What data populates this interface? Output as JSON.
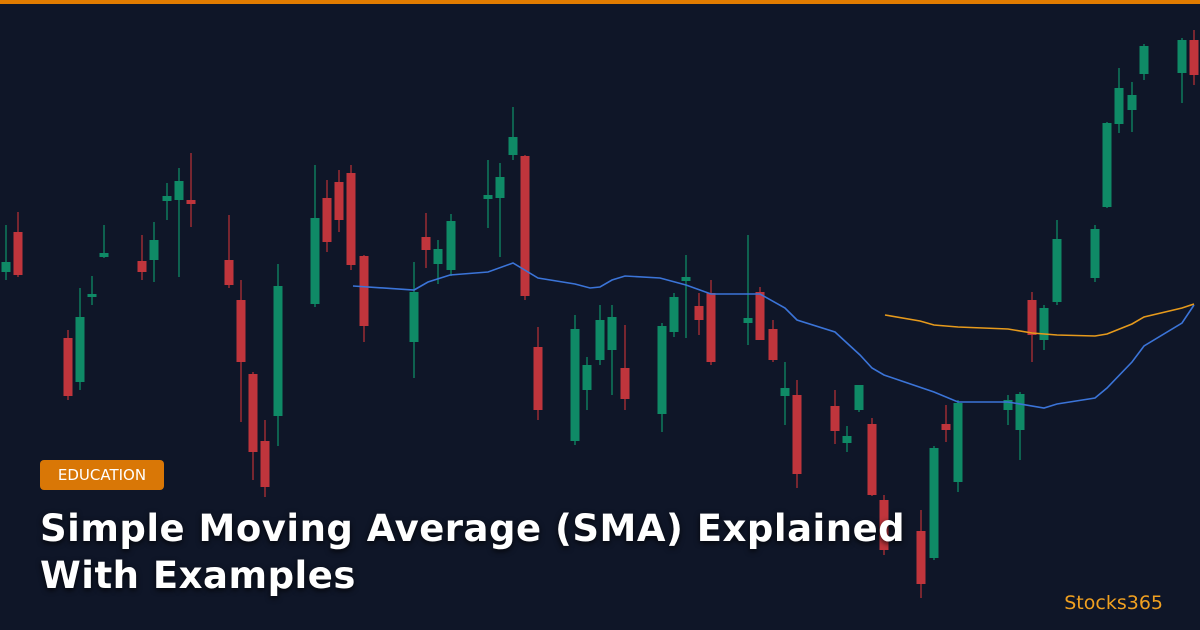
{
  "badge": "EDUCATION",
  "title": "Simple Moving Average (SMA) Explained With Examples",
  "brand": "Stocks365"
}
